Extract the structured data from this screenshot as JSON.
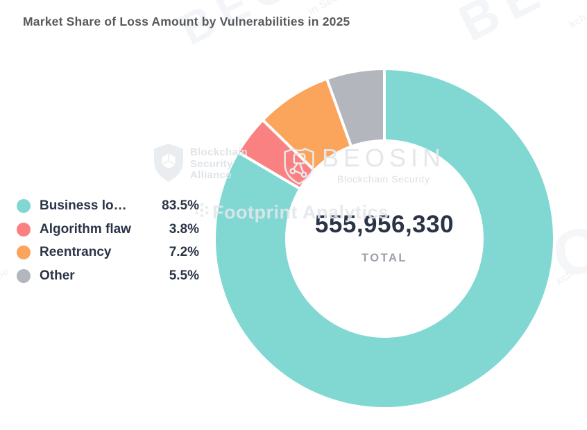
{
  "chart_data": {
    "type": "pie",
    "subtype": "donut",
    "title": "Market Share of Loss Amount by Vulnerabilities in 2025",
    "legend_position": "left",
    "start_angle_deg": 0,
    "direction": "clockwise",
    "center": {
      "value": "555,956,330",
      "label": "TOTAL"
    },
    "slices": [
      {
        "label": "Business lo…",
        "percent": 83.5,
        "percent_label": "83.5%",
        "color": "#81d8d3"
      },
      {
        "label": "Algorithm flaw",
        "percent": 3.8,
        "percent_label": "3.8%",
        "color": "#fa8181"
      },
      {
        "label": "Reentrancy",
        "percent": 7.2,
        "percent_label": "7.2%",
        "color": "#faa45c"
      },
      {
        "label": "Other",
        "percent": 5.5,
        "percent_label": "5.5%",
        "color": "#b3b6bd"
      }
    ]
  },
  "watermarks": {
    "alliance": {
      "line1": "Blockchain",
      "line2": "Security",
      "line3": "Alliance"
    },
    "beosin": {
      "name": "BEOSIN",
      "tagline": "Blockchain Security"
    },
    "footprint": {
      "text": "Footprint Analytics"
    },
    "fragments": [
      "BEO",
      "in Secu",
      "BE",
      "kch",
      "C",
      "kch",
      "Se"
    ]
  }
}
